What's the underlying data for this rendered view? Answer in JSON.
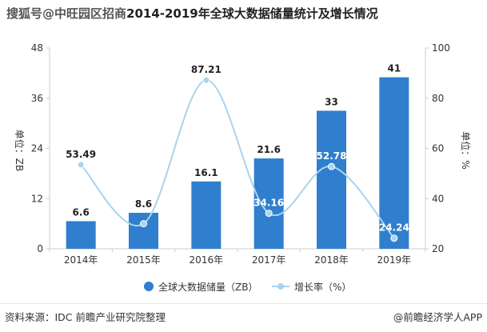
{
  "header": {
    "watermark": "搜狐号@中旺园区招商",
    "title": "2014-2019年全球大数据储量统计及增长情况"
  },
  "footer": {
    "source": "资料来源：IDC 前瞻产业研究院整理",
    "brand": "@前瞻经济学人APP"
  },
  "colors": {
    "bar": "#2f7fce",
    "line": "#a9d4ee",
    "axis": "#cccccc",
    "text": "#333333"
  },
  "chart_data": {
    "type": "bar",
    "categories": [
      "2014年",
      "2015年",
      "2016年",
      "2017年",
      "2018年",
      "2019年"
    ],
    "series": [
      {
        "name": "全球大数据储量（ZB）",
        "type": "bar",
        "axis": "left",
        "values": [
          6.6,
          8.6,
          16.1,
          21.6,
          33,
          41
        ],
        "labels": [
          "6.6",
          "8.6",
          "16.1",
          "21.6",
          "33",
          "41"
        ]
      },
      {
        "name": "增长率（%）",
        "type": "line",
        "axis": "right",
        "values": [
          53.49,
          30,
          87.21,
          34.16,
          52.78,
          24.24
        ],
        "labels": [
          "53.49",
          "",
          "87.21",
          "34.16",
          "52.78",
          "24.24"
        ]
      }
    ],
    "y_left": {
      "label": "单位：ZB",
      "ylim": [
        0,
        48
      ],
      "ticks": [
        "0",
        "12",
        "24",
        "36",
        "48"
      ]
    },
    "y_right": {
      "label": "单位：%",
      "ylim": [
        20,
        100
      ],
      "ticks": [
        "20",
        "40",
        "60",
        "80",
        "100"
      ]
    },
    "grid": false,
    "legend": "bottom"
  }
}
